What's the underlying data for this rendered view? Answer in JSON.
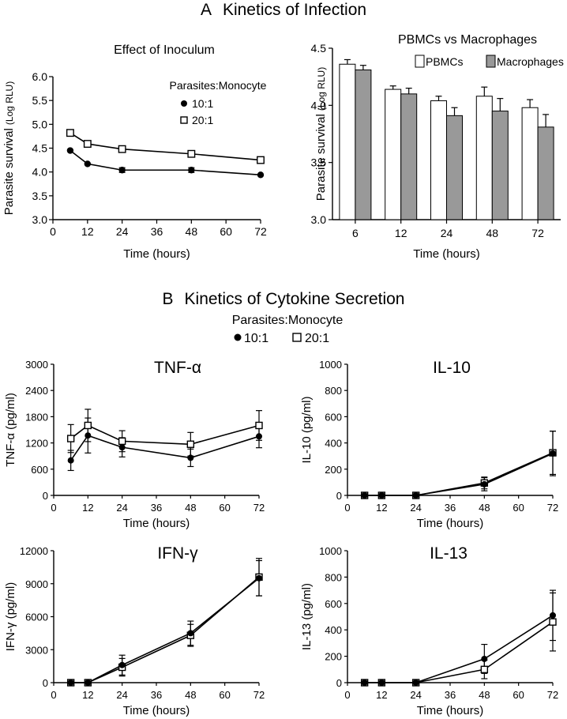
{
  "section_a": {
    "letter": "A",
    "title": "Kinetics of Infection"
  },
  "section_b": {
    "letter": "B",
    "title": "Kinetics of Cytokine Secretion",
    "legend_title": "Parasites:Monocyte",
    "legend_items": [
      "10:1",
      "20:1"
    ]
  },
  "colors": {
    "ink": "#000000",
    "open_fill": "#ffffff",
    "macro_fill": "#999999"
  },
  "chart_data": [
    {
      "id": "inoculum",
      "type": "line",
      "title": "Effect of Inoculum",
      "xlabel": "Time (hours)",
      "ylabel": "Parasite survival",
      "ylabel_unit": "(Log RLU)",
      "legend_title": "Parasites:Monocyte",
      "xlim": [
        0,
        72
      ],
      "xticks": [
        0,
        12,
        24,
        36,
        48,
        60,
        72
      ],
      "ylim": [
        3.0,
        6.0
      ],
      "yticks": [
        "3.0",
        "3.5",
        "4.0",
        "4.5",
        "5.0",
        "5.5",
        "6.0"
      ],
      "series": [
        {
          "name": "10:1",
          "marker": "filled-circle",
          "x": [
            6,
            12,
            24,
            48,
            72
          ],
          "values": [
            4.45,
            4.17,
            4.04,
            4.04,
            3.94
          ],
          "err": [
            0,
            0,
            0.05,
            0.05,
            0
          ]
        },
        {
          "name": "20:1",
          "marker": "open-square",
          "x": [
            6,
            12,
            24,
            48,
            72
          ],
          "values": [
            4.82,
            4.59,
            4.48,
            4.38,
            4.25
          ],
          "err": [
            0,
            0,
            0,
            0,
            0
          ]
        }
      ]
    },
    {
      "id": "pbmc_vs_macro",
      "type": "bar",
      "title": "PBMCs vs Macrophages",
      "xlabel": "Time (hours)",
      "ylabel": "Parasite survival",
      "ylabel_unit": "(Log RLU)",
      "categories": [
        "6",
        "12",
        "24",
        "48",
        "72"
      ],
      "ylim": [
        3.0,
        4.5
      ],
      "yticks": [
        "3.0",
        "3.5",
        "4.0",
        "4.5"
      ],
      "series": [
        {
          "name": "PBMCs",
          "fill": "#ffffff",
          "values": [
            4.36,
            4.14,
            4.04,
            4.08,
            3.98
          ],
          "err": [
            0.04,
            0.03,
            0.04,
            0.08,
            0.07
          ]
        },
        {
          "name": "Macrophages",
          "fill": "#999999",
          "values": [
            4.31,
            4.1,
            3.91,
            3.95,
            3.81
          ],
          "err": [
            0.04,
            0.05,
            0.07,
            0.11,
            0.11
          ]
        }
      ]
    },
    {
      "id": "tnf",
      "type": "line",
      "title": "TNF-α",
      "xlabel": "Time (hours)",
      "ylabel": "TNF-α (pg/ml)",
      "xlim": [
        0,
        72
      ],
      "xticks": [
        0,
        12,
        24,
        36,
        48,
        60,
        72
      ],
      "ylim": [
        0,
        3000
      ],
      "yticks": [
        0,
        600,
        1200,
        1800,
        2400,
        3000
      ],
      "series": [
        {
          "name": "10:1",
          "marker": "filled-circle",
          "x": [
            6,
            12,
            24,
            48,
            72
          ],
          "values": [
            800,
            1370,
            1100,
            860,
            1350
          ],
          "err": [
            230,
            400,
            220,
            200,
            260
          ]
        },
        {
          "name": "20:1",
          "marker": "open-square",
          "x": [
            6,
            12,
            24,
            48,
            72
          ],
          "values": [
            1300,
            1600,
            1240,
            1170,
            1600
          ],
          "err": [
            320,
            370,
            240,
            270,
            340
          ]
        }
      ]
    },
    {
      "id": "il10",
      "type": "line",
      "title": "IL-10",
      "xlabel": "Time (hours)",
      "ylabel": "IL-10 (pg/ml)",
      "xlim": [
        0,
        72
      ],
      "xticks": [
        0,
        12,
        24,
        36,
        48,
        60,
        72
      ],
      "ylim": [
        0,
        1000
      ],
      "yticks": [
        0,
        200,
        400,
        600,
        800,
        1000
      ],
      "series": [
        {
          "name": "10:1",
          "marker": "filled-circle",
          "x": [
            6,
            12,
            24,
            48,
            72
          ],
          "values": [
            0,
            0,
            0,
            85,
            320
          ],
          "err": [
            0,
            0,
            0,
            50,
            170
          ]
        },
        {
          "name": "20:1",
          "marker": "open-square",
          "x": [
            6,
            12,
            24,
            48,
            72
          ],
          "values": [
            0,
            0,
            0,
            95,
            325
          ],
          "err": [
            0,
            0,
            0,
            45,
            165
          ]
        }
      ]
    },
    {
      "id": "ifn",
      "type": "line",
      "title": "IFN-γ",
      "xlabel": "Time (hours)",
      "ylabel": "IFN-γ (pg/ml)",
      "xlim": [
        0,
        72
      ],
      "xticks": [
        0,
        12,
        24,
        36,
        48,
        60,
        72
      ],
      "ylim": [
        0,
        12000
      ],
      "yticks": [
        0,
        3000,
        6000,
        9000,
        12000
      ],
      "series": [
        {
          "name": "10:1",
          "marker": "filled-circle",
          "x": [
            6,
            12,
            24,
            48,
            72
          ],
          "values": [
            0,
            0,
            1600,
            4500,
            9500
          ],
          "err": [
            0,
            0,
            900,
            1100,
            1600
          ]
        },
        {
          "name": "20:1",
          "marker": "open-square",
          "x": [
            6,
            12,
            24,
            48,
            72
          ],
          "values": [
            0,
            0,
            1400,
            4300,
            9600
          ],
          "err": [
            0,
            0,
            800,
            1000,
            1700
          ]
        }
      ]
    },
    {
      "id": "il13",
      "type": "line",
      "title": "IL-13",
      "xlabel": "Time (hours)",
      "ylabel": "IL-13 (pg/ml)",
      "xlim": [
        0,
        72
      ],
      "xticks": [
        0,
        12,
        24,
        36,
        48,
        60,
        72
      ],
      "ylim": [
        0,
        1000
      ],
      "yticks": [
        0,
        200,
        400,
        600,
        800,
        1000
      ],
      "series": [
        {
          "name": "10:1",
          "marker": "filled-circle",
          "x": [
            6,
            12,
            24,
            48,
            72
          ],
          "values": [
            0,
            0,
            0,
            180,
            510
          ],
          "err": [
            0,
            0,
            0,
            110,
            190
          ]
        },
        {
          "name": "20:1",
          "marker": "open-square",
          "x": [
            6,
            12,
            24,
            48,
            72
          ],
          "values": [
            0,
            0,
            0,
            100,
            460
          ],
          "err": [
            0,
            0,
            0,
            70,
            220
          ]
        }
      ]
    }
  ]
}
